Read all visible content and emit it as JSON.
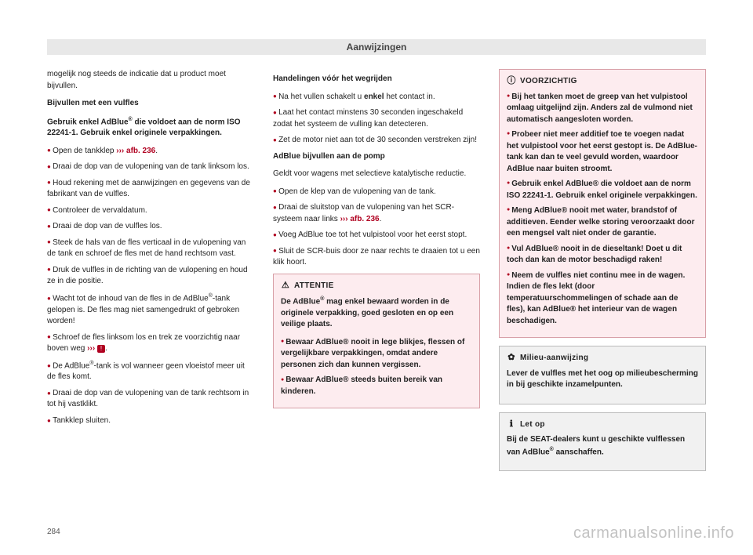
{
  "header": {
    "title": "Aanwijzingen"
  },
  "pageNumber": "284",
  "watermark": "carmanualsonline.info",
  "col1": {
    "intro": "mogelijk nog steeds de indicatie dat u product moet bijvullen.",
    "h1": "Bijvullen met een vulfles",
    "p1a": "Gebruik enkel AdBlue",
    "p1b": " die voldoet aan de norm ISO 22241-1. Gebruik enkel originele verpakkingen.",
    "items": [
      {
        "t": "Open de tankklep ",
        "ref": "››› afb. 236",
        "after": "."
      },
      {
        "t": "Draai de dop van de vulopening van de tank linksom los."
      },
      {
        "t": "Houd rekening met de aanwijzingen en gegevens van de fabrikant van de vulfles."
      },
      {
        "t": "Controleer de vervaldatum."
      },
      {
        "t": "Draai de dop van de vulfles los."
      },
      {
        "t": "Steek de hals van de fles verticaal in de vulopening van de tank en schroef de fles met de hand rechtsom vast."
      },
      {
        "t": "Druk de vulfles in de richting van de vulopening en houd ze in die positie."
      },
      {
        "t": "Wacht tot de inhoud van de fles in de AdBlue",
        "sup": "®",
        "after": "-tank gelopen is. De fles mag niet samengedrukt of gebroken worden!"
      },
      {
        "t": "Schroef de fles linksom los en trek ze voorzichtig naar boven weg ",
        "ref": "›››",
        "icon": "!",
        "after": "."
      },
      {
        "t": "De AdBlue",
        "sup": "®",
        "after": "-tank is vol wanneer geen vloeistof meer uit de fles komt."
      },
      {
        "t": "Draai de dop van de vulopening van de tank rechtsom in tot hij vastklikt."
      },
      {
        "t": "Tankklep sluiten."
      }
    ]
  },
  "col2": {
    "h1": "Handelingen vóór het wegrijden",
    "items1": [
      {
        "t": "Na het vullen schakelt u ",
        "bold": "enkel",
        "after": " het contact in."
      },
      {
        "t": "Laat het contact minstens 30 seconden ingeschakeld zodat het systeem de vulling kan detecteren."
      },
      {
        "t": "Zet de motor niet aan tot de 30 seconden verstreken zijn!"
      }
    ],
    "h2": "AdBlue bijvullen aan de pomp",
    "p2": "Geldt voor wagens met selectieve katalytische reductie.",
    "items2": [
      {
        "t": "Open de klep van de vulopening van de tank."
      },
      {
        "t": "Draai de sluitstop van de vulopening van het SCR-systeem naar links ",
        "ref": "››› afb. 236",
        "after": "."
      },
      {
        "t": "Voeg AdBlue toe tot het vulpistool voor het eerst stopt."
      },
      {
        "t": "Sluit de SCR-buis door ze naar rechts te draaien tot u een klik hoort."
      }
    ],
    "attentie": {
      "title": "ATTENTIE",
      "intro_a": "De AdBlue",
      "intro_b": " mag enkel bewaard worden in de originele verpakking, goed gesloten en op een veilige plaats.",
      "items": [
        "Bewaar AdBlue® nooit in lege blikjes, flessen of vergelijkbare verpakkingen, omdat andere personen zich dan kunnen vergissen.",
        "Bewaar AdBlue® steeds buiten bereik van kinderen."
      ]
    }
  },
  "col3": {
    "voorzichtig": {
      "title": "VOORZICHTIG",
      "items": [
        "Bij het tanken moet de greep van het vulpistool omlaag uitgelijnd zijn. Anders zal de vulmond niet automatisch aangesloten worden.",
        "Probeer niet meer additief toe te voegen nadat het vulpistool voor het eerst gestopt is. De AdBlue-tank kan dan te veel gevuld worden, waardoor AdBlue naar buiten stroomt.",
        "Gebruik enkel AdBlue® die voldoet aan de norm ISO 22241-1. Gebruik enkel originele verpakkingen.",
        "Meng AdBlue® nooit met water, brandstof of additieven. Eender welke storing veroorzaakt door een mengsel valt niet onder de garantie.",
        "Vul AdBlue® nooit in de dieseltank! Doet u dit toch dan kan de motor beschadigd raken!",
        "Neem de vulfles niet continu mee in de wagen. Indien de fles lekt (door temperatuurschommelingen of schade aan de fles), kan AdBlue® het interieur van de wagen beschadigen."
      ]
    },
    "milieu": {
      "title": "Milieu-aanwijzing",
      "text": "Lever de vulfles met het oog op milieubescherming in bij geschikte inzamelpunten."
    },
    "letop": {
      "title": "Let op",
      "text_a": "Bij de SEAT-dealers kunt u geschikte vulflessen van AdBlue",
      "text_b": " aanschaffen."
    }
  }
}
